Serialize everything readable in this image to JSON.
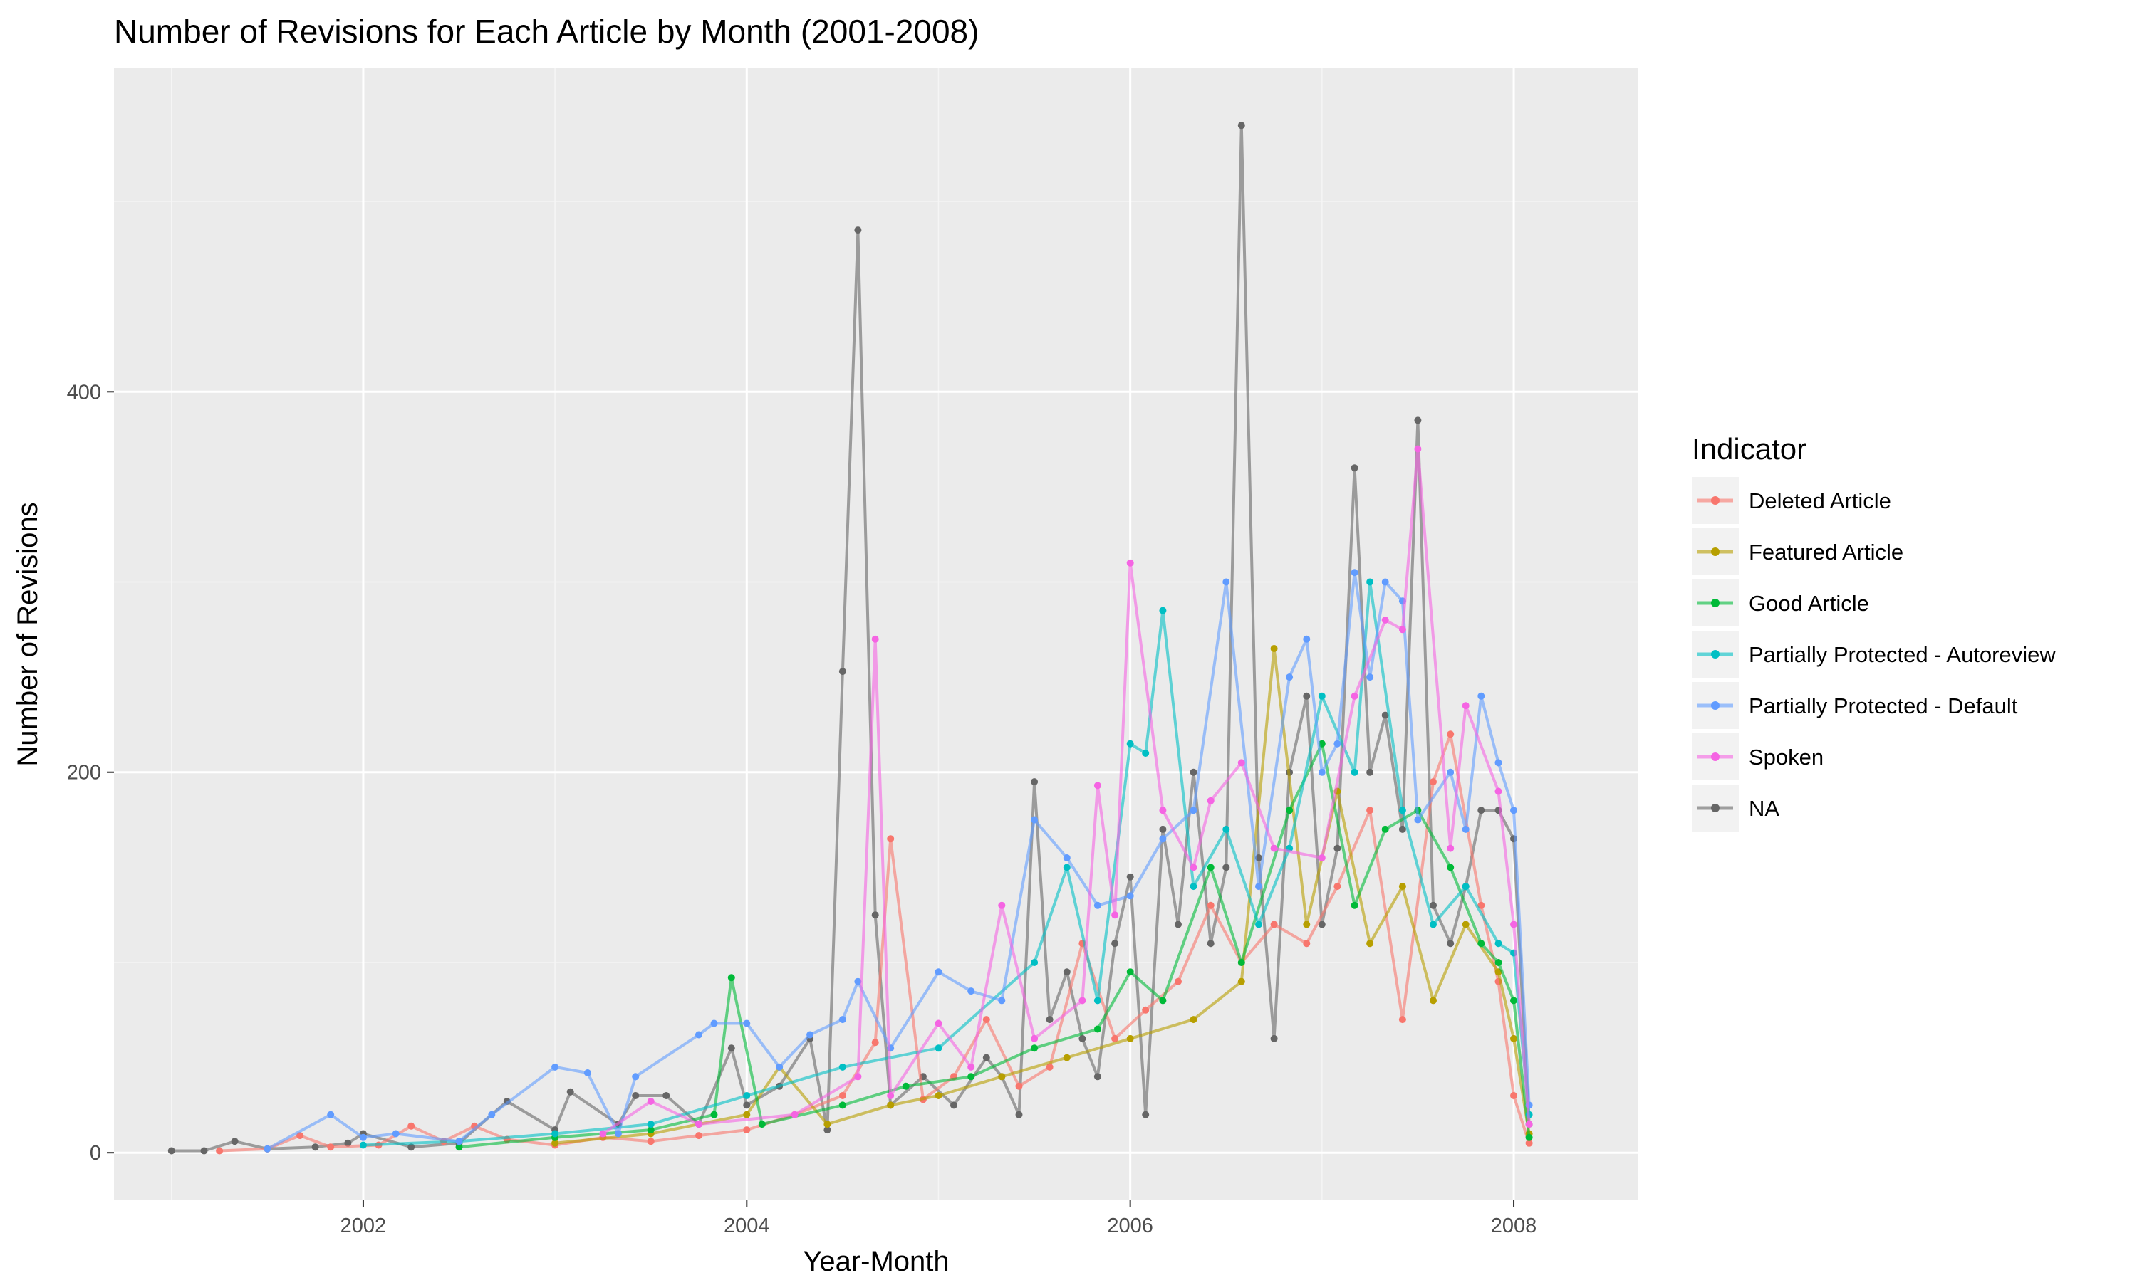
{
  "chart_data": {
    "type": "line",
    "title": "Number of Revisions for Each Article by Month (2001-2008)",
    "xlabel": "Year-Month",
    "ylabel": "Number of Revisions",
    "xlim": [
      2000.7,
      2008.65
    ],
    "ylim": [
      -25,
      570
    ],
    "x_ticks": [
      2002,
      2004,
      2006,
      2008
    ],
    "x_tick_labels": [
      "2002",
      "2004",
      "2006",
      "2008"
    ],
    "y_ticks": [
      0,
      200,
      400
    ],
    "y_tick_labels": [
      "0",
      "200",
      "400"
    ],
    "grid": true,
    "legend": {
      "title": "Indicator",
      "placement": "right",
      "entries": [
        {
          "label": "Deleted Article",
          "color": "#F8766D"
        },
        {
          "label": "Featured Article",
          "color": "#B79F00"
        },
        {
          "label": "Good Article",
          "color": "#00BA38"
        },
        {
          "label": "Partially Protected - Autoreview",
          "color": "#00BFC4"
        },
        {
          "label": "Partially Protected - Default",
          "color": "#619CFF"
        },
        {
          "label": "Spoken",
          "color": "#F564E3"
        },
        {
          "label": "NA",
          "color": "#666666"
        }
      ]
    },
    "series": [
      {
        "name": "NA",
        "color": "#666666",
        "points": [
          [
            2001.0,
            1
          ],
          [
            2001.17,
            1
          ],
          [
            2001.33,
            6
          ],
          [
            2001.5,
            2
          ],
          [
            2001.75,
            3
          ],
          [
            2001.92,
            5
          ],
          [
            2002.0,
            10
          ],
          [
            2002.25,
            3
          ],
          [
            2002.5,
            5
          ],
          [
            2002.75,
            27
          ],
          [
            2003.0,
            12
          ],
          [
            2003.08,
            32
          ],
          [
            2003.33,
            15
          ],
          [
            2003.42,
            30
          ],
          [
            2003.58,
            30
          ],
          [
            2003.75,
            15
          ],
          [
            2003.92,
            55
          ],
          [
            2004.0,
            25
          ],
          [
            2004.17,
            35
          ],
          [
            2004.33,
            60
          ],
          [
            2004.42,
            12
          ],
          [
            2004.5,
            253
          ],
          [
            2004.58,
            485
          ],
          [
            2004.67,
            125
          ],
          [
            2004.75,
            25
          ],
          [
            2004.92,
            40
          ],
          [
            2005.08,
            25
          ],
          [
            2005.25,
            50
          ],
          [
            2005.33,
            40
          ],
          [
            2005.42,
            20
          ],
          [
            2005.5,
            195
          ],
          [
            2005.58,
            70
          ],
          [
            2005.67,
            95
          ],
          [
            2005.75,
            60
          ],
          [
            2005.83,
            40
          ],
          [
            2005.92,
            110
          ],
          [
            2006.0,
            145
          ],
          [
            2006.08,
            20
          ],
          [
            2006.17,
            170
          ],
          [
            2006.25,
            120
          ],
          [
            2006.33,
            200
          ],
          [
            2006.42,
            110
          ],
          [
            2006.5,
            150
          ],
          [
            2006.58,
            540
          ],
          [
            2006.67,
            155
          ],
          [
            2006.75,
            60
          ],
          [
            2006.83,
            200
          ],
          [
            2006.92,
            240
          ],
          [
            2007.0,
            120
          ],
          [
            2007.08,
            160
          ],
          [
            2007.17,
            360
          ],
          [
            2007.25,
            200
          ],
          [
            2007.33,
            230
          ],
          [
            2007.42,
            170
          ],
          [
            2007.5,
            385
          ],
          [
            2007.58,
            130
          ],
          [
            2007.67,
            110
          ],
          [
            2007.75,
            140
          ],
          [
            2007.83,
            180
          ],
          [
            2007.92,
            180
          ],
          [
            2008.0,
            165
          ],
          [
            2008.08,
            15
          ]
        ]
      },
      {
        "name": "Deleted Article",
        "color": "#F8766D",
        "points": [
          [
            2001.25,
            1
          ],
          [
            2001.5,
            2
          ],
          [
            2001.67,
            9
          ],
          [
            2001.83,
            3
          ],
          [
            2002.08,
            4
          ],
          [
            2002.25,
            14
          ],
          [
            2002.42,
            6
          ],
          [
            2002.58,
            14
          ],
          [
            2002.75,
            7
          ],
          [
            2003.0,
            4
          ],
          [
            2003.25,
            8
          ],
          [
            2003.5,
            6
          ],
          [
            2003.75,
            9
          ],
          [
            2004.0,
            12
          ],
          [
            2004.25,
            20
          ],
          [
            2004.5,
            30
          ],
          [
            2004.67,
            58
          ],
          [
            2004.75,
            165
          ],
          [
            2004.92,
            28
          ],
          [
            2005.08,
            40
          ],
          [
            2005.25,
            70
          ],
          [
            2005.42,
            35
          ],
          [
            2005.58,
            45
          ],
          [
            2005.75,
            110
          ],
          [
            2005.92,
            60
          ],
          [
            2006.08,
            75
          ],
          [
            2006.25,
            90
          ],
          [
            2006.42,
            130
          ],
          [
            2006.58,
            100
          ],
          [
            2006.75,
            120
          ],
          [
            2006.92,
            110
          ],
          [
            2007.08,
            140
          ],
          [
            2007.25,
            180
          ],
          [
            2007.42,
            70
          ],
          [
            2007.58,
            195
          ],
          [
            2007.67,
            220
          ],
          [
            2007.83,
            130
          ],
          [
            2007.92,
            90
          ],
          [
            2008.0,
            30
          ],
          [
            2008.08,
            5
          ]
        ]
      },
      {
        "name": "Featured Article",
        "color": "#B79F00",
        "points": [
          [
            2003.0,
            5
          ],
          [
            2003.5,
            10
          ],
          [
            2004.0,
            20
          ],
          [
            2004.17,
            45
          ],
          [
            2004.42,
            15
          ],
          [
            2004.75,
            25
          ],
          [
            2005.0,
            30
          ],
          [
            2005.33,
            40
          ],
          [
            2005.67,
            50
          ],
          [
            2006.0,
            60
          ],
          [
            2006.33,
            70
          ],
          [
            2006.58,
            90
          ],
          [
            2006.75,
            265
          ],
          [
            2006.92,
            120
          ],
          [
            2007.08,
            190
          ],
          [
            2007.25,
            110
          ],
          [
            2007.42,
            140
          ],
          [
            2007.58,
            80
          ],
          [
            2007.75,
            120
          ],
          [
            2007.92,
            95
          ],
          [
            2008.0,
            60
          ],
          [
            2008.08,
            10
          ]
        ]
      },
      {
        "name": "Good Article",
        "color": "#00BA38",
        "points": [
          [
            2002.5,
            3
          ],
          [
            2003.0,
            8
          ],
          [
            2003.5,
            12
          ],
          [
            2003.83,
            20
          ],
          [
            2003.92,
            92
          ],
          [
            2004.08,
            15
          ],
          [
            2004.5,
            25
          ],
          [
            2004.83,
            35
          ],
          [
            2005.17,
            40
          ],
          [
            2005.5,
            55
          ],
          [
            2005.83,
            65
          ],
          [
            2006.0,
            95
          ],
          [
            2006.17,
            80
          ],
          [
            2006.42,
            150
          ],
          [
            2006.58,
            100
          ],
          [
            2006.83,
            180
          ],
          [
            2007.0,
            215
          ],
          [
            2007.17,
            130
          ],
          [
            2007.33,
            170
          ],
          [
            2007.5,
            180
          ],
          [
            2007.67,
            150
          ],
          [
            2007.83,
            110
          ],
          [
            2007.92,
            100
          ],
          [
            2008.0,
            80
          ],
          [
            2008.08,
            8
          ]
        ]
      },
      {
        "name": "Partially Protected - Autoreview",
        "color": "#00BFC4",
        "points": [
          [
            2002.0,
            4
          ],
          [
            2002.5,
            6
          ],
          [
            2003.0,
            10
          ],
          [
            2003.5,
            15
          ],
          [
            2004.0,
            30
          ],
          [
            2004.5,
            45
          ],
          [
            2005.0,
            55
          ],
          [
            2005.5,
            100
          ],
          [
            2005.67,
            150
          ],
          [
            2005.83,
            80
          ],
          [
            2006.0,
            215
          ],
          [
            2006.08,
            210
          ],
          [
            2006.17,
            285
          ],
          [
            2006.33,
            140
          ],
          [
            2006.5,
            170
          ],
          [
            2006.67,
            120
          ],
          [
            2006.83,
            160
          ],
          [
            2007.0,
            240
          ],
          [
            2007.17,
            200
          ],
          [
            2007.25,
            300
          ],
          [
            2007.42,
            180
          ],
          [
            2007.58,
            120
          ],
          [
            2007.75,
            140
          ],
          [
            2007.92,
            110
          ],
          [
            2008.0,
            105
          ],
          [
            2008.08,
            20
          ]
        ]
      },
      {
        "name": "Partially Protected - Default",
        "color": "#619CFF",
        "points": [
          [
            2001.5,
            2
          ],
          [
            2001.83,
            20
          ],
          [
            2002.0,
            8
          ],
          [
            2002.17,
            10
          ],
          [
            2002.5,
            6
          ],
          [
            2002.67,
            20
          ],
          [
            2003.0,
            45
          ],
          [
            2003.17,
            42
          ],
          [
            2003.33,
            10
          ],
          [
            2003.42,
            40
          ],
          [
            2003.75,
            62
          ],
          [
            2003.83,
            68
          ],
          [
            2004.0,
            68
          ],
          [
            2004.17,
            45
          ],
          [
            2004.33,
            62
          ],
          [
            2004.5,
            70
          ],
          [
            2004.58,
            90
          ],
          [
            2004.75,
            55
          ],
          [
            2005.0,
            95
          ],
          [
            2005.17,
            85
          ],
          [
            2005.33,
            80
          ],
          [
            2005.5,
            175
          ],
          [
            2005.67,
            155
          ],
          [
            2005.83,
            130
          ],
          [
            2006.0,
            135
          ],
          [
            2006.17,
            165
          ],
          [
            2006.33,
            180
          ],
          [
            2006.5,
            300
          ],
          [
            2006.67,
            140
          ],
          [
            2006.83,
            250
          ],
          [
            2006.92,
            270
          ],
          [
            2007.0,
            200
          ],
          [
            2007.08,
            215
          ],
          [
            2007.17,
            305
          ],
          [
            2007.25,
            250
          ],
          [
            2007.33,
            300
          ],
          [
            2007.42,
            290
          ],
          [
            2007.5,
            175
          ],
          [
            2007.67,
            200
          ],
          [
            2007.75,
            170
          ],
          [
            2007.83,
            240
          ],
          [
            2007.92,
            205
          ],
          [
            2008.0,
            180
          ],
          [
            2008.08,
            25
          ]
        ]
      },
      {
        "name": "Spoken",
        "color": "#F564E3",
        "points": [
          [
            2003.25,
            10
          ],
          [
            2003.5,
            27
          ],
          [
            2003.75,
            15
          ],
          [
            2004.25,
            20
          ],
          [
            2004.58,
            40
          ],
          [
            2004.67,
            270
          ],
          [
            2004.75,
            30
          ],
          [
            2005.0,
            68
          ],
          [
            2005.17,
            45
          ],
          [
            2005.33,
            130
          ],
          [
            2005.5,
            60
          ],
          [
            2005.75,
            80
          ],
          [
            2005.83,
            193
          ],
          [
            2005.92,
            125
          ],
          [
            2006.0,
            310
          ],
          [
            2006.17,
            180
          ],
          [
            2006.33,
            150
          ],
          [
            2006.42,
            185
          ],
          [
            2006.58,
            205
          ],
          [
            2006.75,
            160
          ],
          [
            2007.0,
            155
          ],
          [
            2007.17,
            240
          ],
          [
            2007.33,
            280
          ],
          [
            2007.42,
            275
          ],
          [
            2007.5,
            370
          ],
          [
            2007.67,
            160
          ],
          [
            2007.75,
            235
          ],
          [
            2007.92,
            190
          ],
          [
            2008.0,
            120
          ],
          [
            2008.08,
            15
          ]
        ]
      }
    ]
  }
}
